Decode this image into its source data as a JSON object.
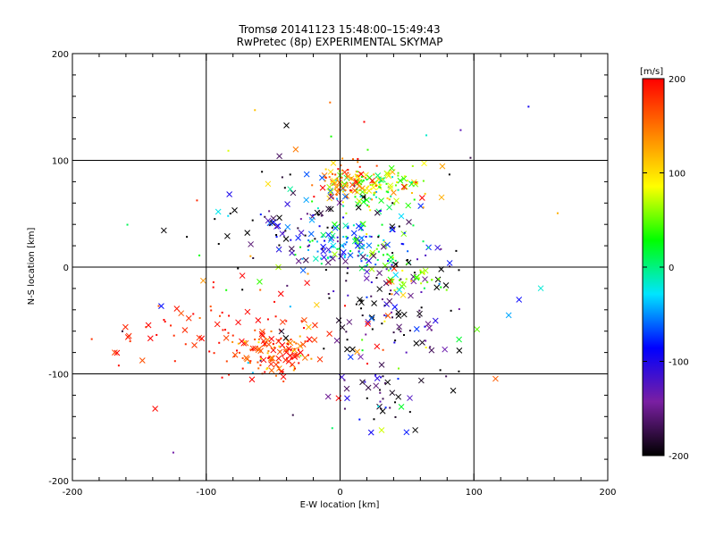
{
  "chart_data": {
    "type": "scatter",
    "title": "Tromsø 20141123 15:48:00–15:49:43",
    "subtitle": "RwPretec (8p) EXPERIMENTAL SKYMAP",
    "xlabel": "E-W location [km]",
    "ylabel": "N-S location [km]",
    "xlim": [
      -200,
      200
    ],
    "ylim": [
      -200,
      200
    ],
    "xticks": [
      "-200",
      "-100",
      "0",
      "100",
      "200"
    ],
    "yticks": [
      "-200",
      "-100",
      "0",
      "100",
      "200"
    ],
    "grid": true,
    "colorbar": {
      "unit": "[m/s]",
      "range": [
        -200,
        200
      ],
      "ticks": [
        "200",
        "100",
        "0",
        "-100",
        "-200"
      ],
      "colors": [
        "#000000",
        "#7a1fa2",
        "#0000ff",
        "#00e5ff",
        "#00ff00",
        "#ffff00",
        "#ff8000",
        "#ff0000"
      ]
    },
    "clusters": [
      {
        "cx": 25,
        "cy": 75,
        "sx": 18,
        "sy": 9,
        "n": 140,
        "vmean": 60,
        "vsd": 60
      },
      {
        "cx": 5,
        "cy": 80,
        "sx": 12,
        "sy": 8,
        "n": 70,
        "vmean": 150,
        "vsd": 40
      },
      {
        "cx": 10,
        "cy": 20,
        "sx": 20,
        "sy": 12,
        "n": 120,
        "vmean": -30,
        "vsd": 60
      },
      {
        "cx": -50,
        "cy": -80,
        "sx": 15,
        "sy": 10,
        "n": 120,
        "vmean": 170,
        "vsd": 40
      },
      {
        "cx": 40,
        "cy": -40,
        "sx": 25,
        "sy": 30,
        "n": 110,
        "vmean": -170,
        "vsd": 50
      },
      {
        "cx": -20,
        "cy": 40,
        "sx": 30,
        "sy": 20,
        "n": 80,
        "vmean": -150,
        "vsd": 60
      },
      {
        "cx": -90,
        "cy": -60,
        "sx": 40,
        "sy": 20,
        "n": 70,
        "vmean": 185,
        "vsd": 15
      },
      {
        "cx": 55,
        "cy": -10,
        "sx": 12,
        "sy": 6,
        "n": 30,
        "vmean": 70,
        "vsd": 30
      },
      {
        "cx": 30,
        "cy": -120,
        "sx": 20,
        "sy": 15,
        "n": 40,
        "vmean": -150,
        "vsd": 50
      },
      {
        "cx": 0,
        "cy": 0,
        "sx": 70,
        "sy": 80,
        "n": 120,
        "vmean": 0,
        "vsd": 160
      }
    ]
  }
}
